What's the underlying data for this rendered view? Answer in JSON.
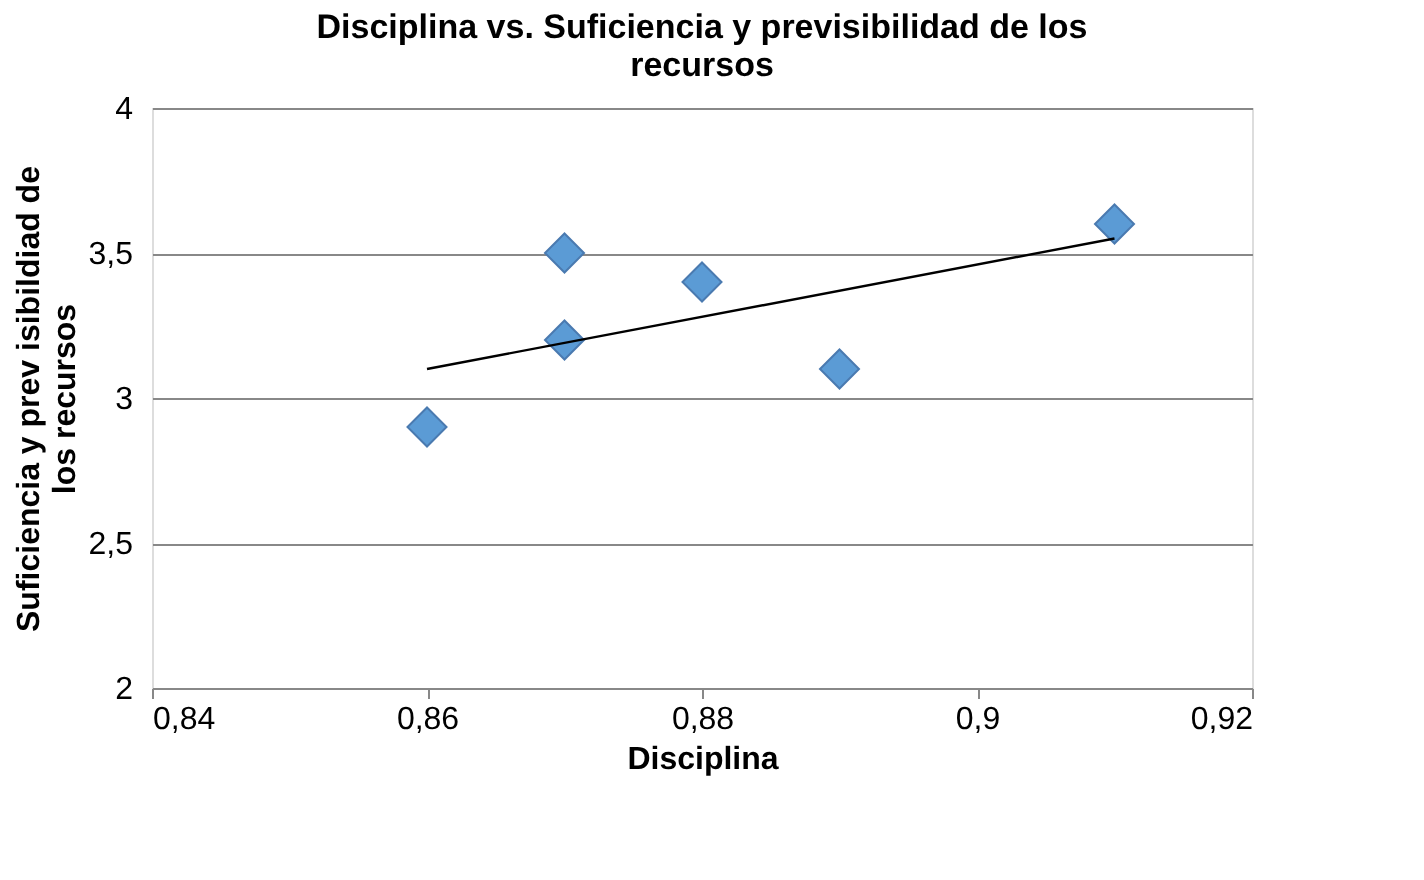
{
  "chart_data": {
    "type": "scatter",
    "title": "Disciplina vs. Suficiencia y previsibilidad de los recursos",
    "xlabel": "Disciplina",
    "ylabel": "Suficiencia y prev isibildiad de los recursos",
    "series": [
      {
        "color": "#5b9bd5",
        "x": [
          0.86,
          0.87,
          0.87,
          0.88,
          0.89,
          0.91
        ],
        "values": [
          2.9,
          3.5,
          3.2,
          3.4,
          3.1,
          3.6
        ]
      },
      {
        "type": "line",
        "marker": "none",
        "color": "#000000",
        "x": [
          0.86,
          0.91
        ],
        "values": [
          3.1,
          3.55
        ]
      }
    ],
    "xlim": [
      0.84,
      0.92
    ],
    "xticks": [
      {
        "value": 0.84,
        "label": "0,84"
      },
      {
        "value": 0.86,
        "label": "0,86"
      },
      {
        "value": 0.88,
        "label": "0,88"
      },
      {
        "value": 0.9,
        "label": "0,9"
      },
      {
        "value": 0.92,
        "label": "0,92"
      }
    ],
    "ylim": [
      2,
      4
    ],
    "yticks": [
      2,
      {
        "value": 2.5,
        "label": "2,5"
      },
      3,
      {
        "value": 3.5,
        "label": "3,5"
      },
      4
    ],
    "grid": "y",
    "marker": "diamond"
  }
}
